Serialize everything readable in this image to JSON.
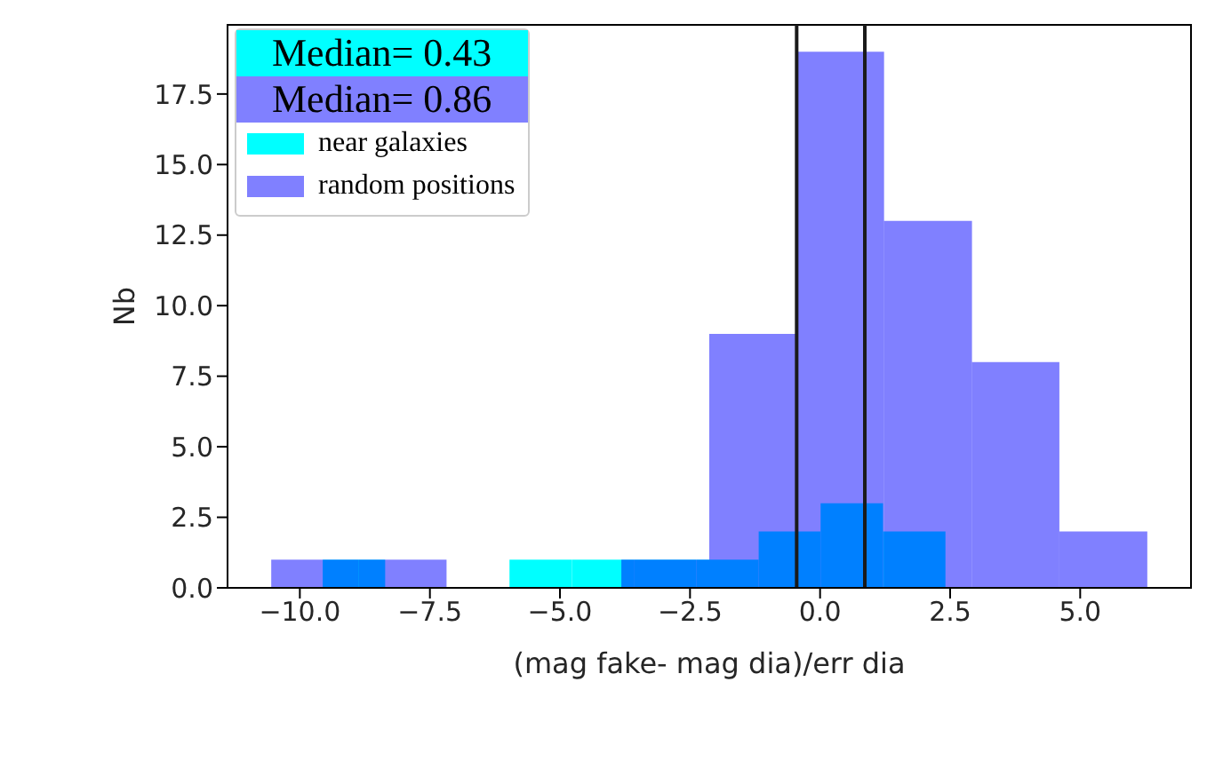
{
  "chart_data": {
    "type": "histogram",
    "xlabel": "(mag fake- mag dia)/err dia",
    "ylabel": "Nb",
    "annotations": [
      "Median= 0.43",
      "Median= 0.86"
    ],
    "bins": [
      -9.56,
      -8.36,
      -5.97,
      -4.77,
      -3.58,
      -2.38,
      -1.18,
      0.01,
      1.21,
      2.41
    ],
    "series": [
      {
        "name": "near galaxies",
        "color": "#00ffff",
        "values": [
          1,
          0,
          1,
          1,
          1,
          1,
          2,
          3,
          2
        ]
      },
      {
        "name": "random positions",
        "color": "#8080ff",
        "bins": [
          -10.55,
          -8.87,
          -7.18,
          -3.82,
          -2.13,
          -0.45,
          1.23,
          2.92,
          4.6,
          6.29
        ],
        "values": [
          1,
          1,
          0,
          1,
          9,
          19,
          13,
          8,
          2
        ]
      }
    ],
    "ref_lines": [
      {
        "axis": "x",
        "value": -0.45,
        "color": "#1a1a1a"
      },
      {
        "axis": "x",
        "value": 0.86,
        "color": "#1a1a1a"
      }
    ],
    "xlim": [
      -11.39,
      7.13
    ],
    "xticks": [
      {
        "value": -10,
        "label": "−10.0"
      },
      {
        "value": -7.5,
        "label": "−7.5"
      },
      {
        "value": -5,
        "label": "−5.0"
      },
      {
        "value": -2.5,
        "label": "−2.5"
      },
      {
        "value": 0,
        "label": "0.0"
      },
      {
        "value": 2.5,
        "label": "2.5"
      },
      {
        "value": 5,
        "label": "5.0"
      }
    ],
    "ylim": [
      0,
      19.95
    ],
    "yticks": [
      {
        "value": 0,
        "label": "0.0"
      },
      {
        "value": 2.5,
        "label": "2.5"
      },
      {
        "value": 5,
        "label": "5.0"
      },
      {
        "value": 7.5,
        "label": "7.5"
      },
      {
        "value": 10,
        "label": "10.0"
      },
      {
        "value": 12.5,
        "label": "12.5"
      },
      {
        "value": 15,
        "label": "15.0"
      },
      {
        "value": 17.5,
        "label": "17.5"
      }
    ],
    "legend": "top left"
  }
}
